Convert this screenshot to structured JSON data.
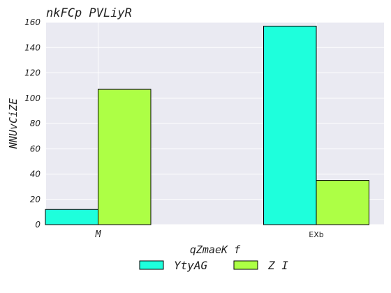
{
  "chart_data": {
    "type": "bar",
    "title": "nkFCp PVLiyR",
    "xlabel": "qZmaeK f",
    "ylabel": "NNUvCiZE",
    "categories": [
      "M",
      "EXb"
    ],
    "series": [
      {
        "name": "YtyAG",
        "values": [
          12,
          157
        ],
        "color": "#1effdc"
      },
      {
        "name": "Z I",
        "values": [
          107,
          35
        ],
        "color": "#adff45"
      }
    ],
    "ylim": [
      0,
      160
    ],
    "yticks": [
      0,
      20,
      40,
      60,
      80,
      100,
      120,
      140,
      160
    ],
    "grid": true,
    "legend": "bottom-center"
  }
}
